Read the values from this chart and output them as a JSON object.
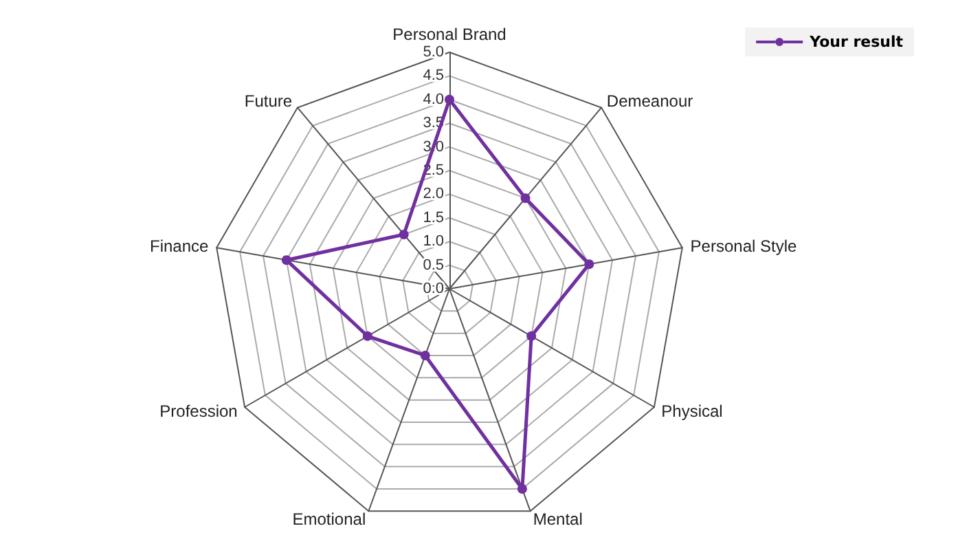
{
  "chart_data": {
    "type": "radar",
    "categories": [
      "Personal Brand",
      "Demeanour",
      "Personal Style",
      "Physical",
      "Mental",
      "Emotional",
      "Profession",
      "Finance",
      "Future"
    ],
    "series": [
      {
        "name": "Your result",
        "color": "#7030a0",
        "values": [
          4.0,
          2.5,
          3.0,
          2.0,
          4.5,
          1.5,
          2.0,
          3.5,
          1.5
        ]
      }
    ],
    "ylim": [
      0,
      5
    ],
    "yticks": [
      {
        "value": 0,
        "label": "0.0"
      },
      {
        "value": 0.5,
        "label": "0.5"
      },
      {
        "value": 1,
        "label": "1.0"
      },
      {
        "value": 1.5,
        "label": "1.5"
      },
      {
        "value": 2,
        "label": "2.0"
      },
      {
        "value": 2.5,
        "label": "2.5"
      },
      {
        "value": 3,
        "label": "3.0"
      },
      {
        "value": 3.5,
        "label": "3.5"
      },
      {
        "value": 4,
        "label": "4.0"
      },
      {
        "value": 4.5,
        "label": "4.5"
      },
      {
        "value": 5,
        "label": "5.0"
      }
    ],
    "legend": "top right",
    "marker": "circle",
    "line_style": "solid",
    "grid": true
  }
}
